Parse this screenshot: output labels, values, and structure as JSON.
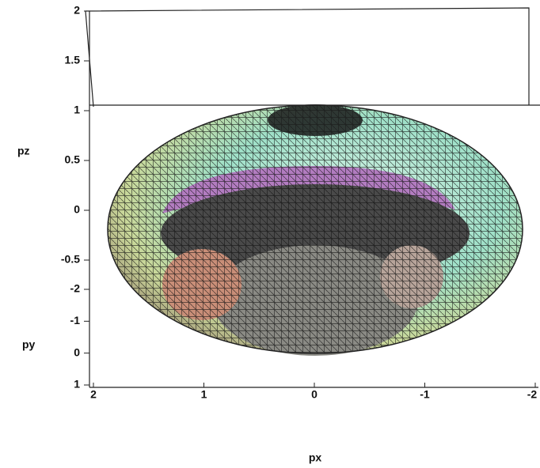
{
  "chart_data": {
    "type": "surface",
    "xlabel": "px",
    "ylabel": "py",
    "zlabel": "pz",
    "xlim": [
      2,
      -2
    ],
    "xticks": [
      2,
      1,
      0,
      -1,
      -2
    ],
    "ylim": [
      -2,
      1
    ],
    "yticks": [
      -2,
      -1,
      0,
      1
    ],
    "zlim": [
      -0.5,
      2
    ],
    "zticks": [
      2,
      1.5,
      1,
      0.5,
      0,
      -0.5
    ]
  }
}
